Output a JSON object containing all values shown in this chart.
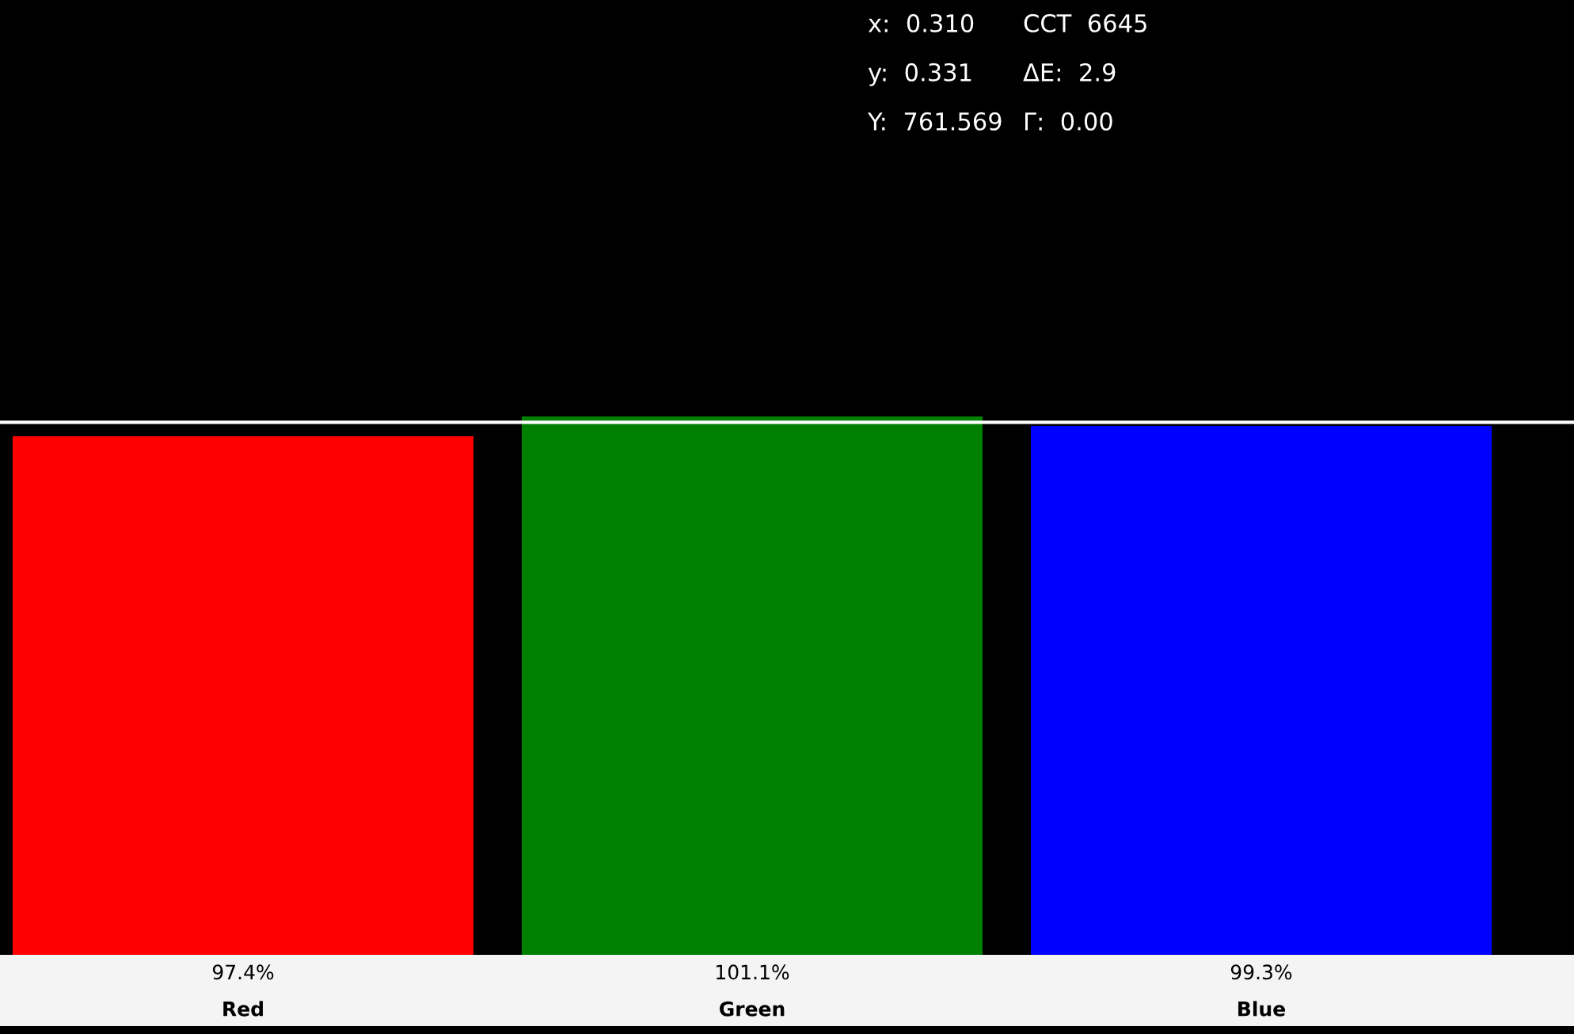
{
  "chart_data": {
    "type": "bar",
    "categories": [
      "Red",
      "Green",
      "Blue"
    ],
    "values": [
      97.4,
      101.1,
      99.3
    ],
    "colors": [
      "#ff0000",
      "#008000",
      "#0000ff"
    ],
    "value_labels": [
      "97.4%",
      "101.1%",
      "99.3%"
    ],
    "ref_lines": [
      {
        "axis": "y",
        "value": 100,
        "color": "#ffffff"
      }
    ],
    "annotations": [
      "x:  0.310",
      "y:  0.331",
      "Y:  761.569",
      "CCT  6645",
      "ΔE:  2.9",
      "Γ:  0.00"
    ],
    "grid": false,
    "legend": false
  }
}
